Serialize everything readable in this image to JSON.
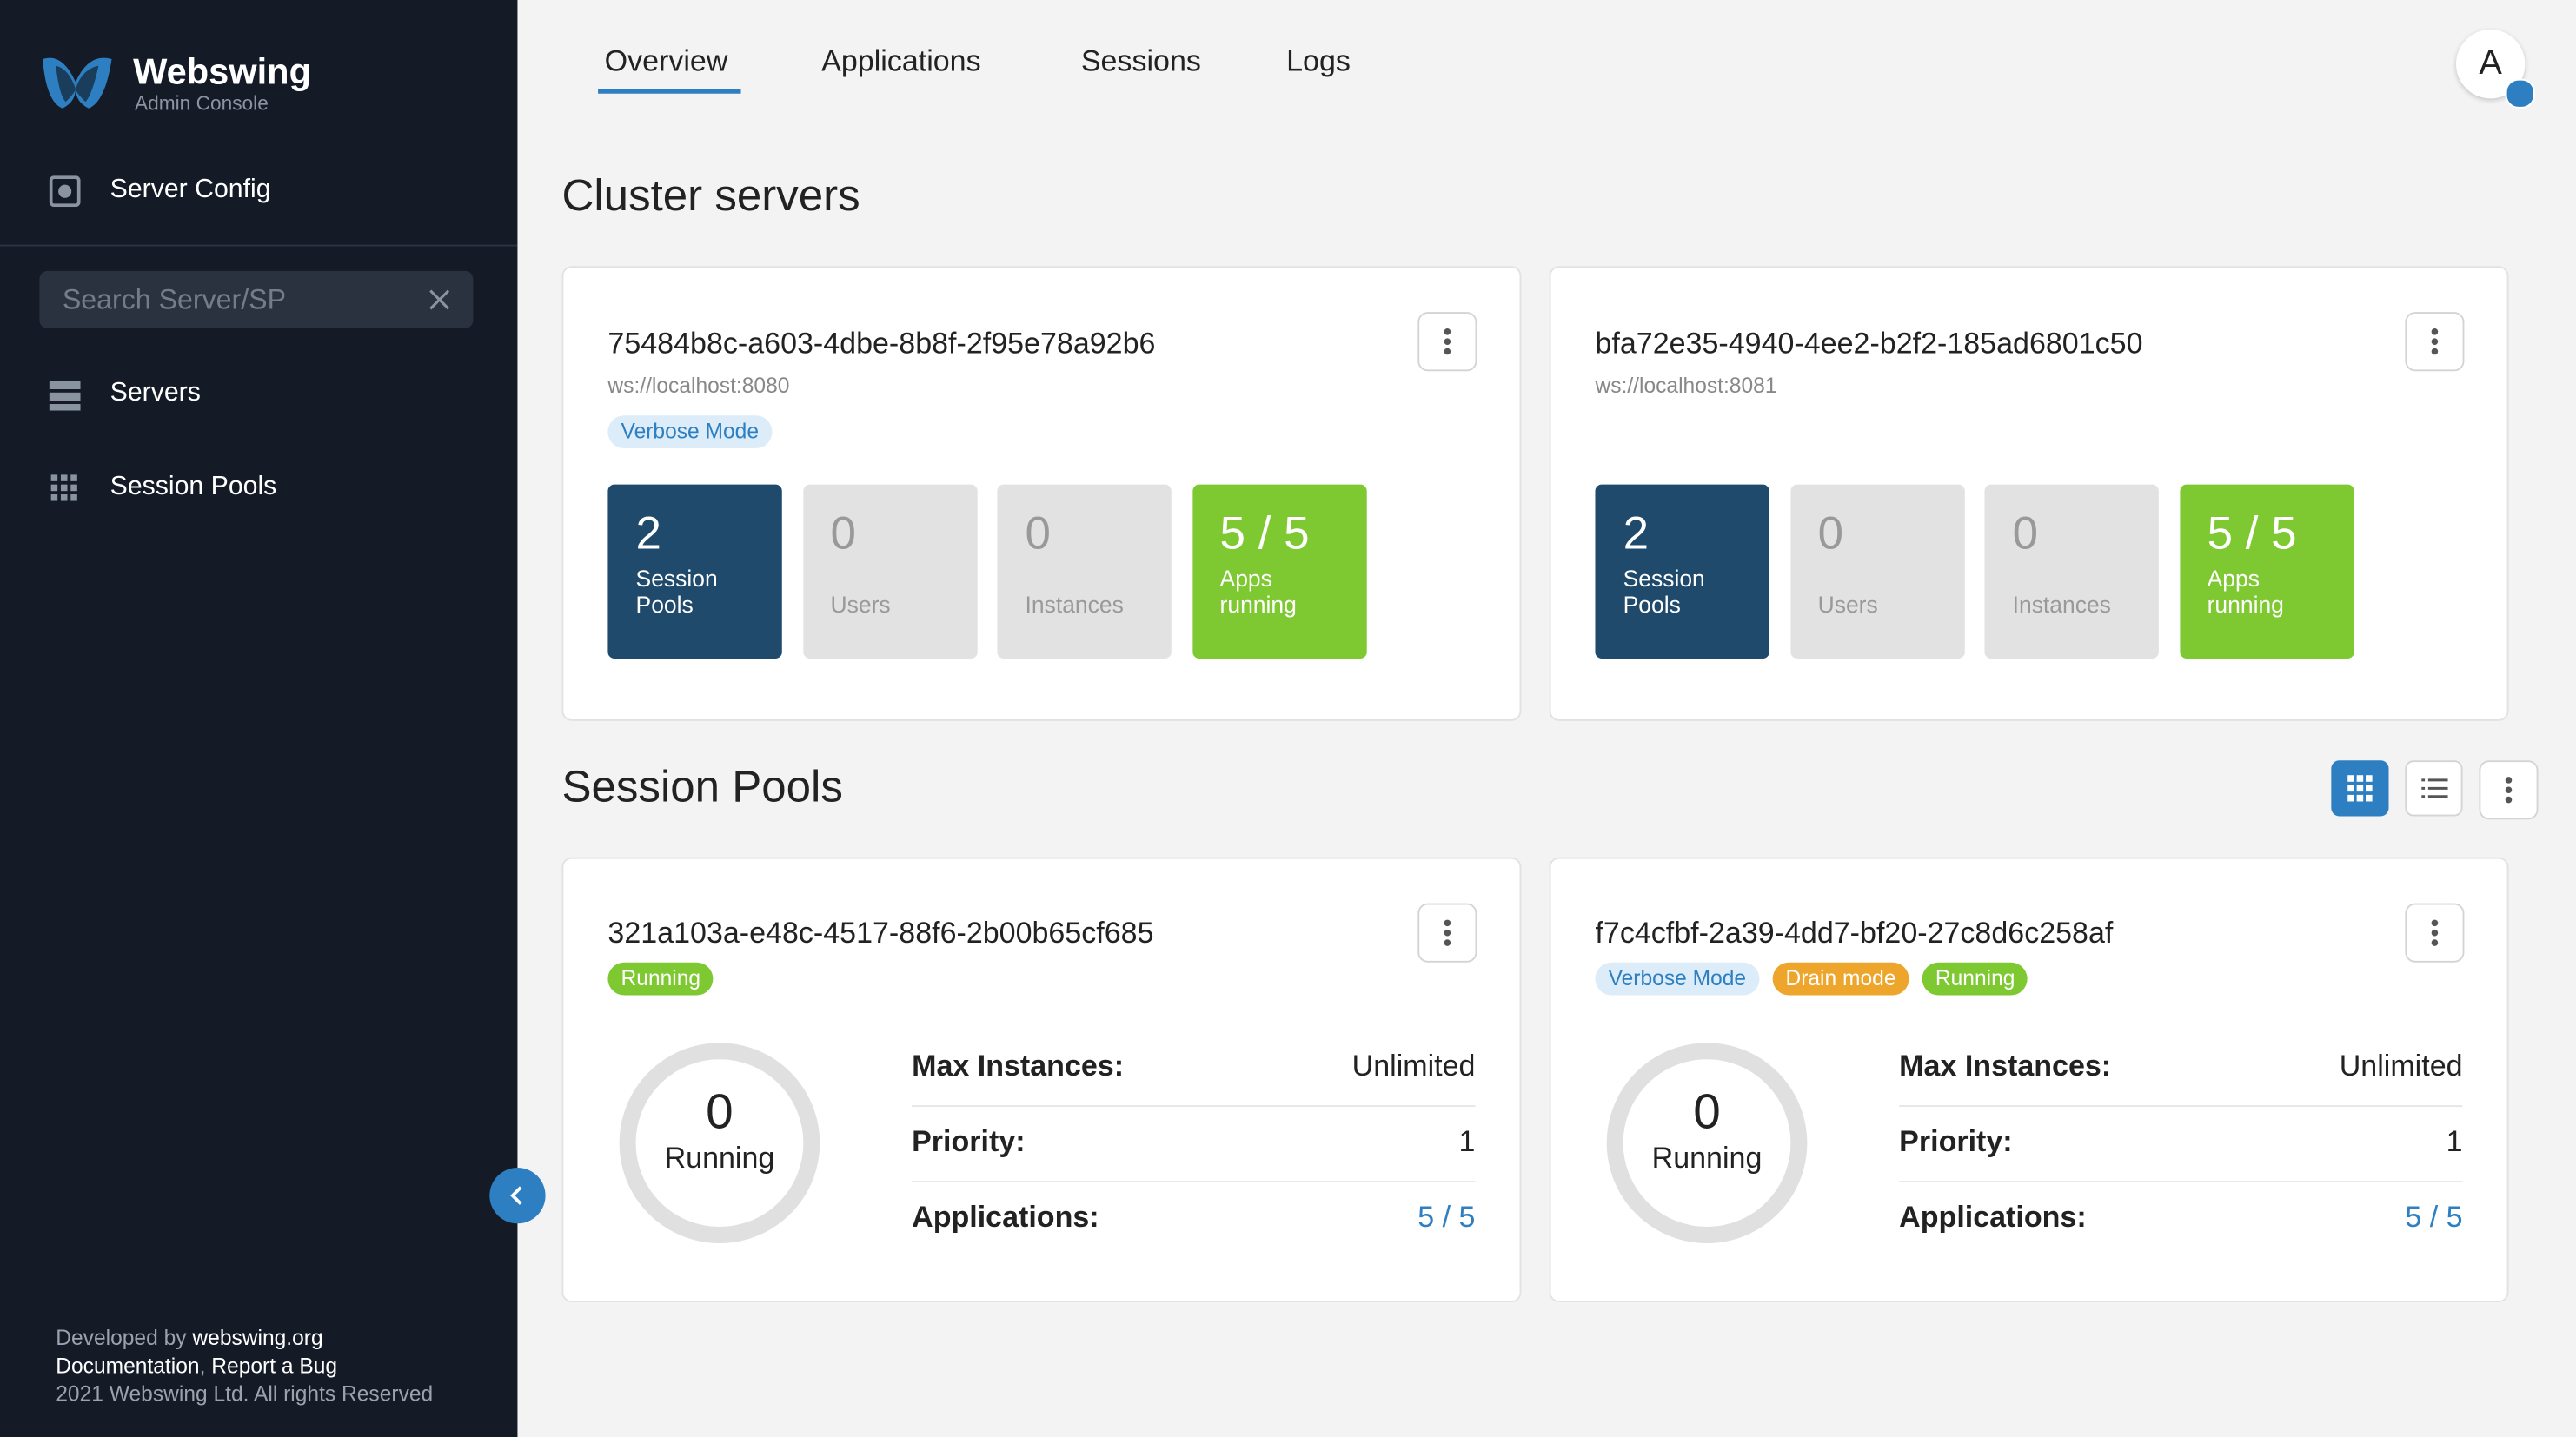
{
  "sidebar": {
    "brand": "Webswing",
    "brand_sub": "Admin Console",
    "server_config": "Server Config",
    "search_placeholder": "Search Server/SP",
    "nav": [
      "Servers",
      "Session Pools"
    ],
    "footer": {
      "developed_by": "Developed by",
      "site": "webswing.org",
      "documentation": "Documentation",
      "separator": ",",
      "report_bug": "Report a Bug",
      "copyright": "2021 Webswing Ltd. All rights Reserved"
    }
  },
  "tabs": [
    "Overview",
    "Applications",
    "Sessions",
    "Logs"
  ],
  "avatar": "A",
  "cluster": {
    "title": "Cluster servers",
    "servers": [
      {
        "id": "75484b8c-a603-4dbe-8b8f-2f95e78a92b6",
        "url": "ws://localhost:8080",
        "badges": [
          {
            "text": "Verbose Mode",
            "color": "#2d7fc1"
          }
        ],
        "stats": [
          {
            "value": "2",
            "label": "Session Pools",
            "color": "#1f4a6b"
          },
          {
            "value": "0",
            "label": "Users",
            "color": "#e2e2e2"
          },
          {
            "value": "0",
            "label": "Instances",
            "color": "#e2e2e2"
          },
          {
            "value": "5 / 5",
            "label": "Apps running",
            "color": "#7ec932"
          }
        ]
      },
      {
        "id": "bfa72e35-4940-4ee2-b2f2-185ad6801c50",
        "url": "ws://localhost:8081",
        "badges": [],
        "stats": [
          {
            "value": "2",
            "label": "Session Pools",
            "color": "#1f4a6b"
          },
          {
            "value": "0",
            "label": "Users",
            "color": "#e2e2e2"
          },
          {
            "value": "0",
            "label": "Instances",
            "color": "#e2e2e2"
          },
          {
            "value": "5 / 5",
            "label": "Apps running",
            "color": "#7ec932"
          }
        ]
      }
    ]
  },
  "pools": {
    "title": "Session Pools",
    "items": [
      {
        "id": "321a103a-e48c-4517-88f6-2b00b65cf685",
        "badges": [
          {
            "text": "Running",
            "color": "#7ec932"
          }
        ],
        "ring": {
          "count": "0",
          "label": "Running"
        },
        "rows": [
          {
            "label": "Max Instances:",
            "value": "Unlimited"
          },
          {
            "label": "Priority:",
            "value": "1"
          },
          {
            "label": "Applications:",
            "value": "5 / 5"
          }
        ]
      },
      {
        "id": "f7c4cfbf-2a39-4dd7-bf20-27c8d6c258af",
        "badges": [
          {
            "text": "Verbose Mode",
            "color": "#2d7fc1"
          },
          {
            "text": "Drain mode",
            "color": "#eda52b"
          },
          {
            "text": "Running",
            "color": "#7ec932"
          }
        ],
        "ring": {
          "count": "0",
          "label": "Running"
        },
        "rows": [
          {
            "label": "Max Instances:",
            "value": "Unlimited"
          },
          {
            "label": "Priority:",
            "value": "1"
          },
          {
            "label": "Applications:",
            "value": "5 / 5"
          }
        ]
      }
    ]
  }
}
